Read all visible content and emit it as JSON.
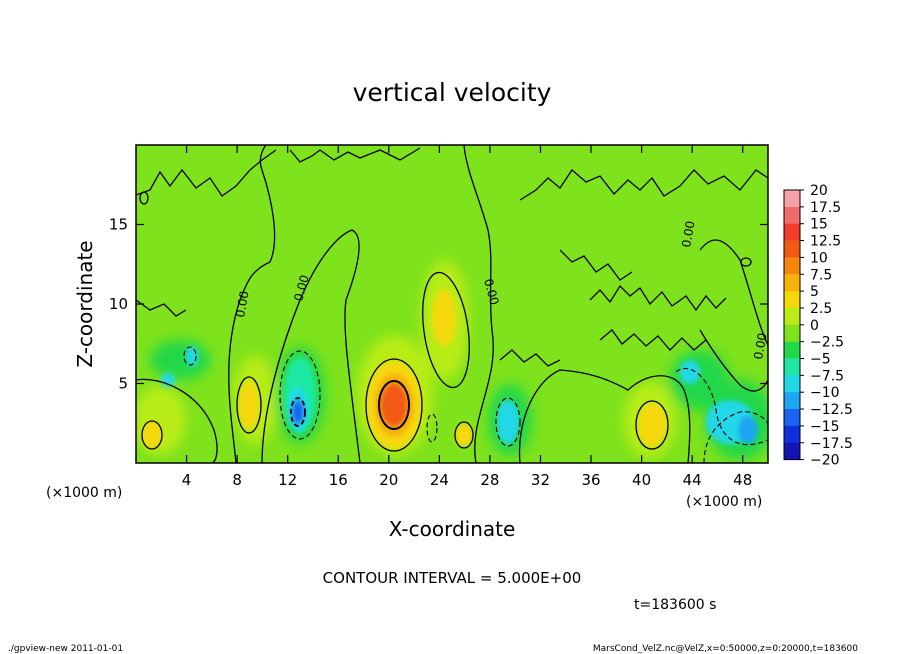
{
  "chart_data": {
    "type": "heatmap",
    "title": "vertical velocity",
    "xlabel": "X-coordinate",
    "ylabel": "Z-coordinate",
    "x_unit": "(×1000 m)",
    "x_unit_right": "(×1000 m)",
    "xlim": [
      0,
      50
    ],
    "ylim": [
      0,
      20
    ],
    "x_ticks": [
      "4",
      "8",
      "12",
      "16",
      "20",
      "24",
      "28",
      "32",
      "36",
      "40",
      "44",
      "48"
    ],
    "x_tick_values": [
      4,
      8,
      12,
      16,
      20,
      24,
      28,
      32,
      36,
      40,
      44,
      48
    ],
    "y_ticks": [
      "5",
      "10",
      "15"
    ],
    "y_tick_values": [
      5,
      10,
      15
    ],
    "colorbar": {
      "labels": [
        "20",
        "17.5",
        "15",
        "12.5",
        "10",
        "7.5",
        "5",
        "2.5",
        "0",
        "−2.5",
        "−5",
        "−7.5",
        "−10",
        "−12.5",
        "−15",
        "−17.5",
        "−20"
      ],
      "colors": [
        "#f5a3a8",
        "#f26a6a",
        "#f23c2c",
        "#f25a14",
        "#f5870d",
        "#f7b20a",
        "#f5d80a",
        "#b9ec18",
        "#7ee21c",
        "#22d84a",
        "#1ee8a4",
        "#22d8e8",
        "#1fa6f2",
        "#1a62f0",
        "#1030dc",
        "#1414b4",
        "#6a10c8"
      ]
    },
    "contour_labels": [
      "0.00",
      "0.00",
      "0.00",
      "0.00",
      "0.00"
    ],
    "features": [
      {
        "x": 2.0,
        "z": 2.0,
        "value": 5
      },
      {
        "x": 9.2,
        "z": 4.0,
        "value": 5
      },
      {
        "x": 12.8,
        "z": 3.5,
        "value": -10
      },
      {
        "x": 20.3,
        "z": 3.8,
        "value": 10
      },
      {
        "x": 24.0,
        "z": 9.4,
        "value": 5
      },
      {
        "x": 26.0,
        "z": 2.0,
        "value": 2.5
      },
      {
        "x": 29.5,
        "z": 2.8,
        "value": -5
      },
      {
        "x": 40.3,
        "z": 2.5,
        "value": 5
      },
      {
        "x": 47.0,
        "z": 2.3,
        "value": -7.5
      }
    ],
    "contour_interval": "CONTOUR INTERVAL = 5.000E+00",
    "time_label": "t=183600 s",
    "footer_left": "./gpview-new  2011-01-01",
    "footer_right": "MarsCond_VelZ.nc@VelZ,x=0:50000,z=0:20000,t=183600"
  }
}
